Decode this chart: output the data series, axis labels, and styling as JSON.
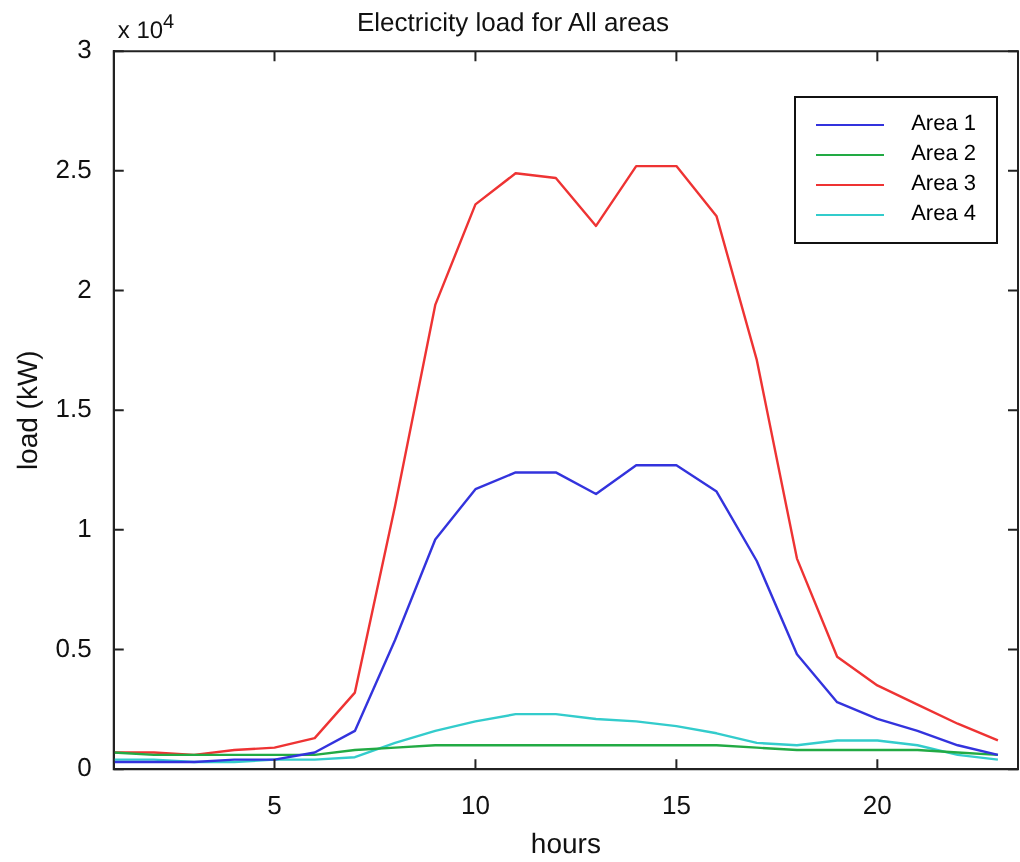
{
  "chart_data": {
    "type": "line",
    "title": "Electricity load for All areas",
    "xlabel": "hours",
    "ylabel": "load (kW)",
    "annotations": [
      "x 10$^{4}$"
    ],
    "x": [
      1,
      2,
      3,
      4,
      5,
      6,
      7,
      8,
      9,
      10,
      11,
      12,
      13,
      14,
      15,
      16,
      17,
      18,
      19,
      20,
      21,
      22,
      23
    ],
    "xlim": [
      1,
      23.5
    ],
    "xticks": [
      5,
      10,
      15,
      20
    ],
    "ylim": [
      0,
      3
    ],
    "yticks": [
      0,
      0.5,
      1,
      1.5,
      2,
      2.5,
      3
    ],
    "grid": false,
    "legend": "top right",
    "marker": "none",
    "line_style": "solid",
    "series": [
      {
        "name": "Area 1",
        "color": "#3333dd",
        "values": [
          0.03,
          0.03,
          0.03,
          0.04,
          0.04,
          0.07,
          0.16,
          0.54,
          0.96,
          1.17,
          1.24,
          1.24,
          1.15,
          1.27,
          1.27,
          1.16,
          0.87,
          0.48,
          0.28,
          0.21,
          0.16,
          0.1,
          0.06
        ]
      },
      {
        "name": "Area 2",
        "color": "#22aa44",
        "values": [
          0.07,
          0.06,
          0.06,
          0.06,
          0.06,
          0.06,
          0.08,
          0.09,
          0.1,
          0.1,
          0.1,
          0.1,
          0.1,
          0.1,
          0.1,
          0.1,
          0.09,
          0.08,
          0.08,
          0.08,
          0.08,
          0.07,
          0.06
        ]
      },
      {
        "name": "Area 3",
        "color": "#ee3333",
        "values": [
          0.07,
          0.07,
          0.06,
          0.08,
          0.09,
          0.13,
          0.32,
          1.1,
          1.94,
          2.36,
          2.49,
          2.47,
          2.27,
          2.52,
          2.52,
          2.31,
          1.71,
          0.88,
          0.47,
          0.35,
          0.27,
          0.19,
          0.12
        ]
      },
      {
        "name": "Area 4",
        "color": "#33cccc",
        "values": [
          0.04,
          0.04,
          0.03,
          0.03,
          0.04,
          0.04,
          0.05,
          0.11,
          0.16,
          0.2,
          0.23,
          0.23,
          0.21,
          0.2,
          0.18,
          0.15,
          0.11,
          0.1,
          0.12,
          0.12,
          0.1,
          0.06,
          0.04
        ]
      }
    ]
  }
}
